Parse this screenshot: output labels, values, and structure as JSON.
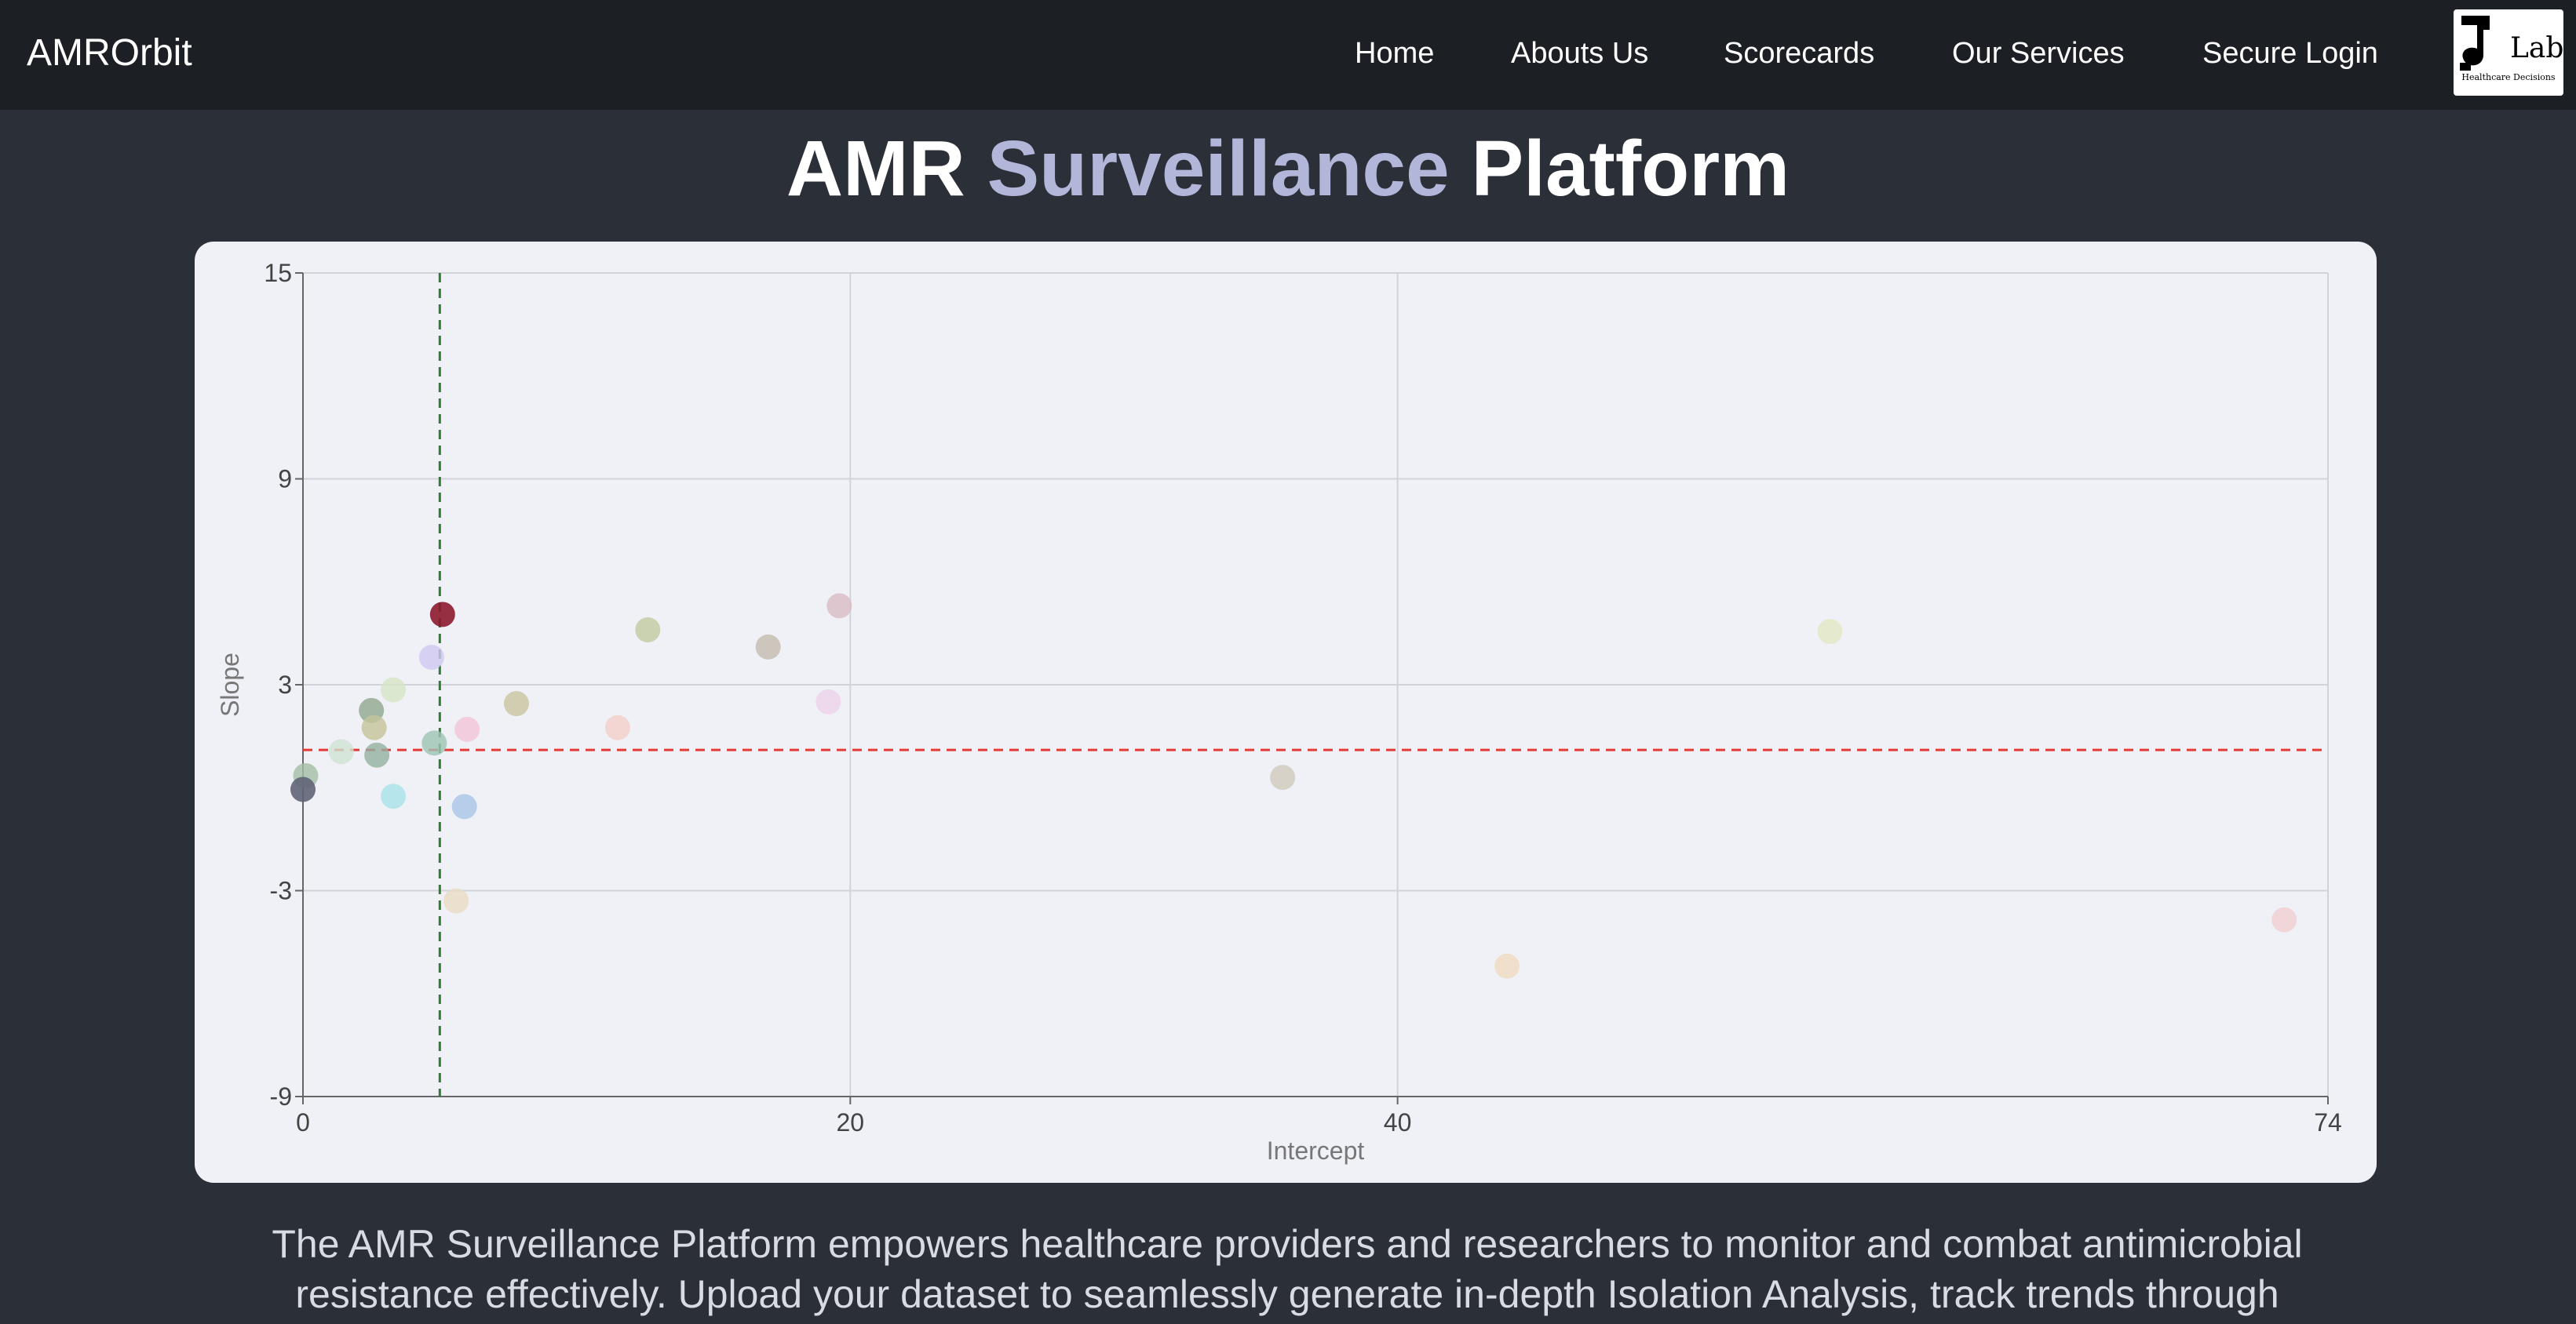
{
  "navbar": {
    "brand": "AMROrbit",
    "links": [
      {
        "label": "Home"
      },
      {
        "label": "Abouts Us"
      },
      {
        "label": "Scorecards"
      },
      {
        "label": "Our Services"
      },
      {
        "label": "Secure Login"
      }
    ],
    "logo_text": "Lab",
    "logo_subtext": "Healthcare Decisions"
  },
  "hero": {
    "title_part1": "AMR ",
    "title_accent": "Surveillance",
    "title_part2": " Platform"
  },
  "chart_data": {
    "type": "scatter",
    "xlabel": "Intercept",
    "ylabel": "Slope",
    "xlim": [
      0,
      74
    ],
    "ylim": [
      -9,
      15
    ],
    "xticks": [
      0,
      20,
      40,
      74
    ],
    "yticks": [
      15,
      9,
      3,
      -3,
      -9
    ],
    "grid": true,
    "reference_lines": {
      "vertical_x": 5,
      "vertical_color": "#2e7d32",
      "horizontal_y": 1.1,
      "horizontal_color": "#e53935"
    },
    "points": [
      {
        "x": 5.1,
        "y": 5.05,
        "color": "#8b1a2e",
        "opacity": 0.9
      },
      {
        "x": 4.7,
        "y": 3.8,
        "color": "#cfc8f2",
        "opacity": 0.8
      },
      {
        "x": 3.3,
        "y": 2.85,
        "color": "#d6e6c6",
        "opacity": 0.8
      },
      {
        "x": 2.5,
        "y": 2.25,
        "color": "#8fa88f",
        "opacity": 0.8
      },
      {
        "x": 2.6,
        "y": 1.75,
        "color": "#c4c49a",
        "opacity": 0.8
      },
      {
        "x": 6.0,
        "y": 1.7,
        "color": "#f2c4d8",
        "opacity": 0.8
      },
      {
        "x": 4.8,
        "y": 1.3,
        "color": "#9ec4b4",
        "opacity": 0.8
      },
      {
        "x": 1.4,
        "y": 1.05,
        "color": "#cfe4d4",
        "opacity": 0.8
      },
      {
        "x": 2.7,
        "y": 0.95,
        "color": "#93b0a0",
        "opacity": 0.8
      },
      {
        "x": 0.1,
        "y": 0.35,
        "color": "#a5bfa5",
        "opacity": 0.8
      },
      {
        "x": 0.0,
        "y": -0.05,
        "color": "#5f6475",
        "opacity": 0.9
      },
      {
        "x": 3.3,
        "y": -0.25,
        "color": "#a8e4ea",
        "opacity": 0.8
      },
      {
        "x": 5.9,
        "y": -0.55,
        "color": "#a8c6e6",
        "opacity": 0.8
      },
      {
        "x": 5.6,
        "y": -3.3,
        "color": "#eadbc4",
        "opacity": 0.8
      },
      {
        "x": 7.8,
        "y": 2.45,
        "color": "#c8c4a0",
        "opacity": 0.8
      },
      {
        "x": 11.5,
        "y": 1.75,
        "color": "#f4cfc8",
        "opacity": 0.8
      },
      {
        "x": 12.6,
        "y": 4.6,
        "color": "#c0caa0",
        "opacity": 0.8
      },
      {
        "x": 17.0,
        "y": 4.1,
        "color": "#c4bcae",
        "opacity": 0.8
      },
      {
        "x": 19.6,
        "y": 5.3,
        "color": "#d9bcc4",
        "opacity": 0.8
      },
      {
        "x": 19.2,
        "y": 2.5,
        "color": "#ecd2ea",
        "opacity": 0.8
      },
      {
        "x": 35.8,
        "y": 0.3,
        "color": "#cfcbbd",
        "opacity": 0.8
      },
      {
        "x": 44.0,
        "y": -5.2,
        "color": "#f0dcc0",
        "opacity": 0.8
      },
      {
        "x": 55.8,
        "y": 4.55,
        "color": "#e2e8c4",
        "opacity": 0.8
      },
      {
        "x": 72.4,
        "y": -3.85,
        "color": "#f0cfd2",
        "opacity": 0.8
      }
    ]
  },
  "intro": {
    "text": "The AMR Surveillance Platform empowers healthcare providers and researchers to monitor and combat antimicrobial resistance effectively. Upload your dataset to seamlessly generate in-depth Isolation Analysis, track trends through"
  }
}
